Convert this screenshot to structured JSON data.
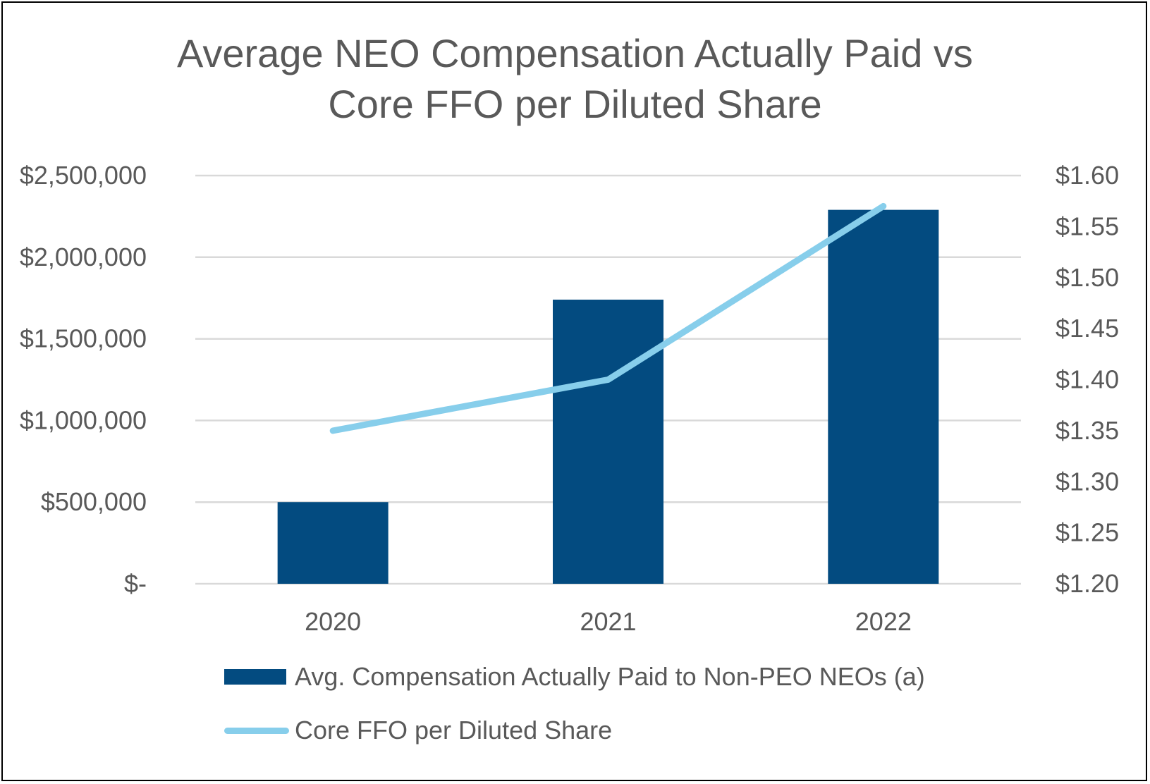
{
  "chart_data": {
    "type": "bar+line",
    "title_lines": [
      "Average NEO Compensation Actually Paid  vs",
      "Core FFO per Diluted Share"
    ],
    "categories": [
      "2020",
      "2021",
      "2022"
    ],
    "series": [
      {
        "name": "Avg. Compensation Actually Paid to Non-PEO NEOs (a)",
        "type": "bar",
        "axis": "left",
        "color": "#034b80",
        "values": [
          500000,
          1740000,
          2290000
        ]
      },
      {
        "name": "Core FFO per Diluted Share",
        "type": "line",
        "axis": "right",
        "color": "#87ceeb",
        "values": [
          1.35,
          1.4,
          1.57
        ]
      }
    ],
    "y_left": {
      "min": 0,
      "max": 2500000,
      "ticks": [
        0,
        500000,
        1000000,
        1500000,
        2000000,
        2500000
      ],
      "tick_labels": [
        "$-",
        "$500,000",
        "$1,000,000",
        "$1,500,000",
        "$2,000,000",
        "$2,500,000"
      ]
    },
    "y_right": {
      "min": 1.2,
      "max": 1.6,
      "ticks": [
        1.2,
        1.25,
        1.3,
        1.35,
        1.4,
        1.45,
        1.5,
        1.55,
        1.6
      ],
      "tick_labels": [
        "$1.20",
        "$1.25",
        "$1.30",
        "$1.35",
        "$1.40",
        "$1.45",
        "$1.50",
        "$1.55",
        "$1.60"
      ]
    },
    "grid": true,
    "gridline_color": "#d9d9d9",
    "legend_position": "bottom"
  }
}
